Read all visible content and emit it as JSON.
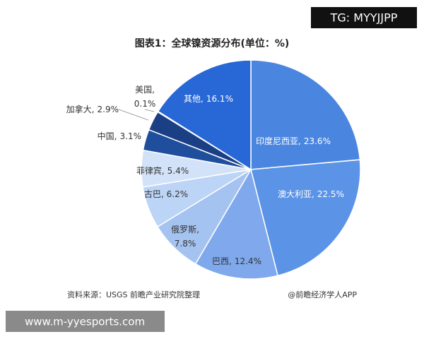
{
  "chart_data": {
    "type": "pie",
    "title": "图表1：全球镍资源分布(单位：%)",
    "categories": [
      "印度尼西亚,",
      "澳大利亚,",
      "巴西,",
      "俄罗斯,",
      "古巴,",
      "菲律宾,",
      "中国,",
      "加拿大,",
      "美国,",
      "其他,"
    ],
    "values": [
      23.6,
      22.5,
      12.4,
      7.8,
      6.2,
      5.4,
      3.1,
      2.9,
      0.1,
      16.1
    ],
    "value_labels": [
      "23.6%",
      "22.5%",
      "12.4%",
      "7.8%",
      "6.2%",
      "5.4%",
      "3.1%",
      "2.9%",
      "0.1%",
      "16.1%"
    ],
    "colors": [
      "#4a86e0",
      "#5b93e6",
      "#7fa9ec",
      "#a5c3f1",
      "#bcd4f5",
      "#d2e2f8",
      "#1f4e9c",
      "#1a3f85",
      "#13337a",
      "#2767d6"
    ],
    "source": "资料来源：USGS 前瞻产业研究院整理",
    "credit": "@前瞻经济学人APP"
  },
  "watermarks": {
    "top": "TG: MYYJJPP",
    "bottom": "www.m-yyesports.com"
  }
}
